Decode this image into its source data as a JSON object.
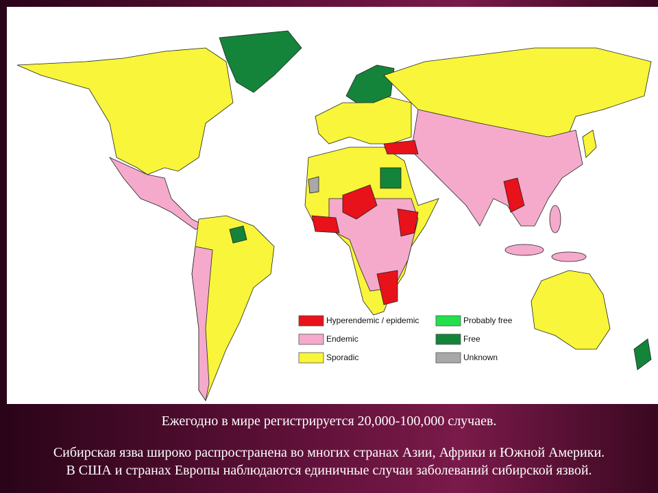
{
  "legend": [
    {
      "label": "Hyperendemic / epidemic",
      "color": "#e8121a"
    },
    {
      "label": "Probably free",
      "color": "#22e04a"
    },
    {
      "label": "Endemic",
      "color": "#f5aacc"
    },
    {
      "label": "Free",
      "color": "#14843a"
    },
    {
      "label": "Sporadic",
      "color": "#f8f53a"
    },
    {
      "label": "Unknown",
      "color": "#a8a8a8"
    }
  ],
  "caption": {
    "line1": "Ежегодно в мире регистрируется 20,000-100,000 случаев.",
    "line2": "Сибирская язва широко распространена во многих странах Азии, Африки и Южной Америки.",
    "line3": "В США и странах Европы наблюдаются единичные случаи заболеваний сибирской язвой."
  }
}
